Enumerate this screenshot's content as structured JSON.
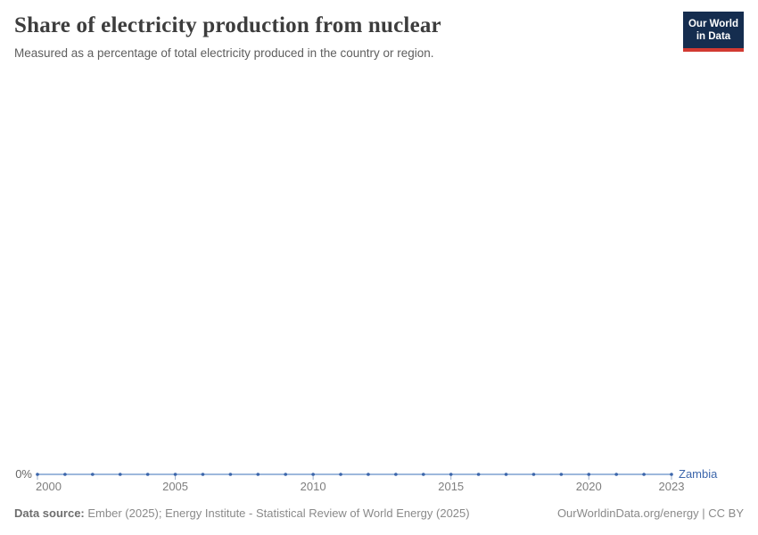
{
  "header": {
    "title": "Share of electricity production from nuclear",
    "subtitle": "Measured as a percentage of total electricity produced in the country or region.",
    "logo": {
      "line1": "Our World",
      "line2": "in Data",
      "bg_color": "#152d4f",
      "bar_color": "#d23a32"
    }
  },
  "chart_data": {
    "type": "line",
    "title": "Share of electricity production from nuclear",
    "subtitle": "Measured as a percentage of total electricity produced in the country or region.",
    "xlabel": "",
    "ylabel": "",
    "xlim": [
      2000,
      2023
    ],
    "ylim": [
      0,
      1
    ],
    "grid": false,
    "legend_position": "end-of-line",
    "x_ticks": [
      2000,
      2005,
      2010,
      2015,
      2020,
      2023
    ],
    "x_tick_labels": [
      "2000",
      "2005",
      "2010",
      "2015",
      "2020",
      "2023"
    ],
    "y_tick_labels": [
      "0%"
    ],
    "series": [
      {
        "name": "Zambia",
        "color": "#3c66ab",
        "line_color": "#9db8dc",
        "tick_color": "#9fb1cb",
        "x": [
          2000,
          2001,
          2002,
          2003,
          2004,
          2005,
          2006,
          2007,
          2008,
          2009,
          2010,
          2011,
          2012,
          2013,
          2014,
          2015,
          2016,
          2017,
          2018,
          2019,
          2020,
          2021,
          2022,
          2023
        ],
        "values": [
          0,
          0,
          0,
          0,
          0,
          0,
          0,
          0,
          0,
          0,
          0,
          0,
          0,
          0,
          0,
          0,
          0,
          0,
          0,
          0,
          0,
          0,
          0,
          0
        ]
      }
    ]
  },
  "footer": {
    "source_label": "Data source:",
    "source_text": "Ember (2025); Energy Institute - Statistical Review of World Energy (2025)",
    "license_text": "OurWorldinData.org/energy | CC BY"
  }
}
